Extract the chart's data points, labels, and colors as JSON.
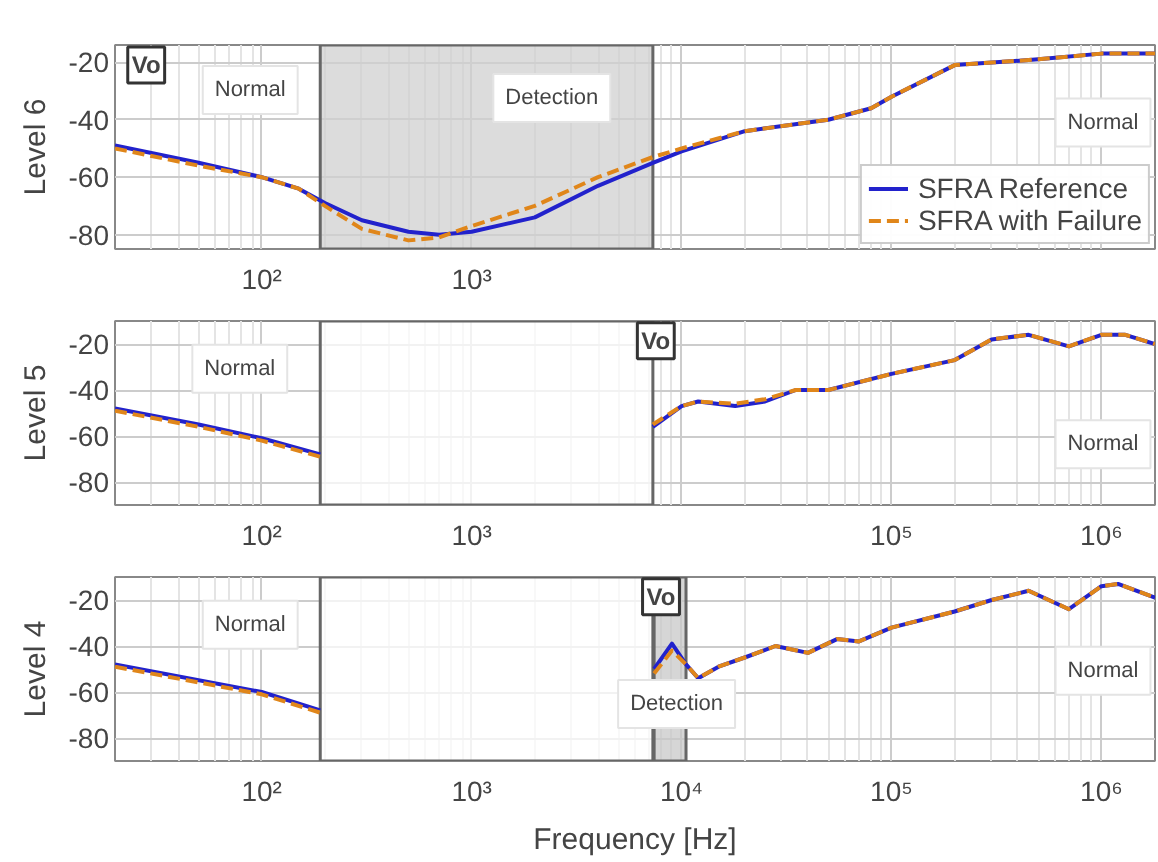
{
  "chart_data": [
    {
      "type": "line",
      "ylabel": "Level 6",
      "log": "x",
      "grid": true,
      "legend": "bottom right",
      "marker": "none",
      "xlim": [
        20,
        1800000
      ],
      "ylim": [
        -85,
        -14
      ],
      "xticks": [
        {
          "value": 100,
          "label": "10²"
        },
        {
          "value": 1000,
          "label": "10³"
        },
        {
          "value": 10000,
          "label": null
        },
        {
          "value": 100000,
          "label": null
        },
        {
          "value": 1000000,
          "label": null
        }
      ],
      "yticks": [
        -20,
        -40,
        -60,
        -80
      ],
      "bands": [
        {
          "axis": "x",
          "from": 190,
          "to": 7300,
          "color": "#d0d0d0"
        }
      ],
      "annotations": [
        "Vo",
        "Normal",
        "Detection",
        "Normal"
      ],
      "series": [
        {
          "name": "SFRA Reference",
          "color": "#2222cc",
          "line_style": "solid",
          "x": [
            20,
            50,
            100,
            150,
            200,
            300,
            500,
            700,
            1000,
            2000,
            4000,
            7300,
            10000,
            20000,
            50000,
            80000,
            100000,
            200000,
            500000,
            1000000,
            1800000
          ],
          "values": [
            -49,
            -55,
            -60,
            -64,
            -69,
            -75,
            -79,
            -80,
            -79,
            -74,
            -63,
            -55,
            -51,
            -44,
            -40,
            -36,
            -32,
            -21,
            -19,
            -17,
            -17
          ]
        },
        {
          "name": "SFRA with Failure",
          "color": "#e0861a",
          "line_style": "dashed",
          "x": [
            20,
            50,
            100,
            150,
            200,
            300,
            500,
            700,
            1000,
            2000,
            4000,
            7300,
            10000,
            20000,
            50000,
            80000,
            100000,
            200000,
            500000,
            1000000,
            1800000
          ],
          "values": [
            -50,
            -56,
            -60,
            -64,
            -70,
            -78,
            -82,
            -81,
            -77,
            -70,
            -60,
            -53,
            -50,
            -44,
            -40,
            -36,
            -32,
            -21,
            -19,
            -17,
            -17
          ]
        }
      ]
    },
    {
      "type": "line",
      "ylabel": "Level 5",
      "log": "x",
      "grid": true,
      "marker": "none",
      "xlim": [
        20,
        1800000
      ],
      "ylim": [
        -90,
        -10
      ],
      "xticks": [
        {
          "value": 100,
          "label": "10²"
        },
        {
          "value": 1000,
          "label": "10³"
        },
        {
          "value": 10000,
          "label": null
        },
        {
          "value": 100000,
          "label": "10⁵"
        },
        {
          "value": 1000000,
          "label": "10⁶"
        }
      ],
      "yticks": [
        -20,
        -40,
        -60,
        -80
      ],
      "bands": [
        {
          "axis": "x",
          "from": 190,
          "to": 7300,
          "color": "#ffffff"
        }
      ],
      "annotations": [
        "Vo",
        "Normal",
        "Normal"
      ],
      "series": [
        {
          "color": "#2222cc",
          "line_style": "solid",
          "x": [
            20,
            50,
            100,
            190,
            1000,
            7300,
            10000,
            12000,
            18000,
            25000,
            35000,
            50000,
            100000,
            200000,
            300000,
            450000,
            700000,
            1000000,
            1300000,
            1800000
          ],
          "values": [
            -48,
            -55,
            -61,
            -68,
            null,
            -56,
            -47,
            -45,
            -47,
            -45,
            -40,
            -40,
            -33,
            -27,
            -18,
            -16,
            -21,
            -16,
            -16,
            -20
          ]
        },
        {
          "color": "#e0861a",
          "line_style": "dashed",
          "x": [
            20,
            50,
            100,
            190,
            1000,
            7300,
            10000,
            12000,
            18000,
            25000,
            35000,
            50000,
            100000,
            200000,
            300000,
            450000,
            700000,
            1000000,
            1300000,
            1800000
          ],
          "values": [
            -49,
            -56,
            -62,
            -69,
            null,
            -55,
            -47,
            -45,
            -46,
            -44,
            -40,
            -40,
            -33,
            -27,
            -18,
            -16,
            -21,
            -16,
            -16,
            -20
          ]
        }
      ]
    },
    {
      "type": "line",
      "ylabel": "Level 4",
      "xlabel": "Frequency [Hz]",
      "log": "x",
      "grid": true,
      "marker": "none",
      "xlim": [
        20,
        1800000
      ],
      "ylim": [
        -90,
        -10
      ],
      "xticks": [
        {
          "value": 100,
          "label": "10²"
        },
        {
          "value": 1000,
          "label": "10³"
        },
        {
          "value": 10000,
          "label": "10⁴"
        },
        {
          "value": 100000,
          "label": "10⁵"
        },
        {
          "value": 1000000,
          "label": "10⁶"
        }
      ],
      "yticks": [
        -20,
        -40,
        -60,
        -80
      ],
      "bands": [
        {
          "axis": "x",
          "from": 190,
          "to": 7300,
          "color": "#ffffff"
        },
        {
          "axis": "x",
          "from": 7400,
          "to": 10500,
          "color": "#c8c8c8"
        }
      ],
      "annotations": [
        "Vo",
        "Normal",
        "Detection",
        "Normal"
      ],
      "series": [
        {
          "color": "#2222cc",
          "line_style": "solid",
          "x": [
            20,
            100,
            190,
            1000,
            7400,
            9000,
            10500,
            12000,
            15000,
            20000,
            28000,
            40000,
            55000,
            70000,
            100000,
            200000,
            300000,
            450000,
            700000,
            1000000,
            1200000,
            1800000
          ],
          "values": [
            -48,
            -60,
            -68,
            null,
            -50,
            -39,
            -48,
            -54,
            -49,
            -45,
            -40,
            -43,
            -37,
            -38,
            -32,
            -25,
            -20,
            -16,
            -24,
            -14,
            -13,
            -19
          ]
        },
        {
          "color": "#e0861a",
          "line_style": "dashed",
          "x": [
            20,
            100,
            190,
            1000,
            7400,
            9000,
            10500,
            12000,
            15000,
            20000,
            28000,
            40000,
            55000,
            70000,
            100000,
            200000,
            300000,
            450000,
            700000,
            1000000,
            1200000,
            1800000
          ],
          "values": [
            -49,
            -61,
            -69,
            null,
            -52,
            -42,
            -48,
            -54,
            -49,
            -45,
            -40,
            -43,
            -37,
            -38,
            -32,
            -25,
            -20,
            -16,
            -24,
            -14,
            -13,
            -19
          ]
        }
      ]
    }
  ]
}
